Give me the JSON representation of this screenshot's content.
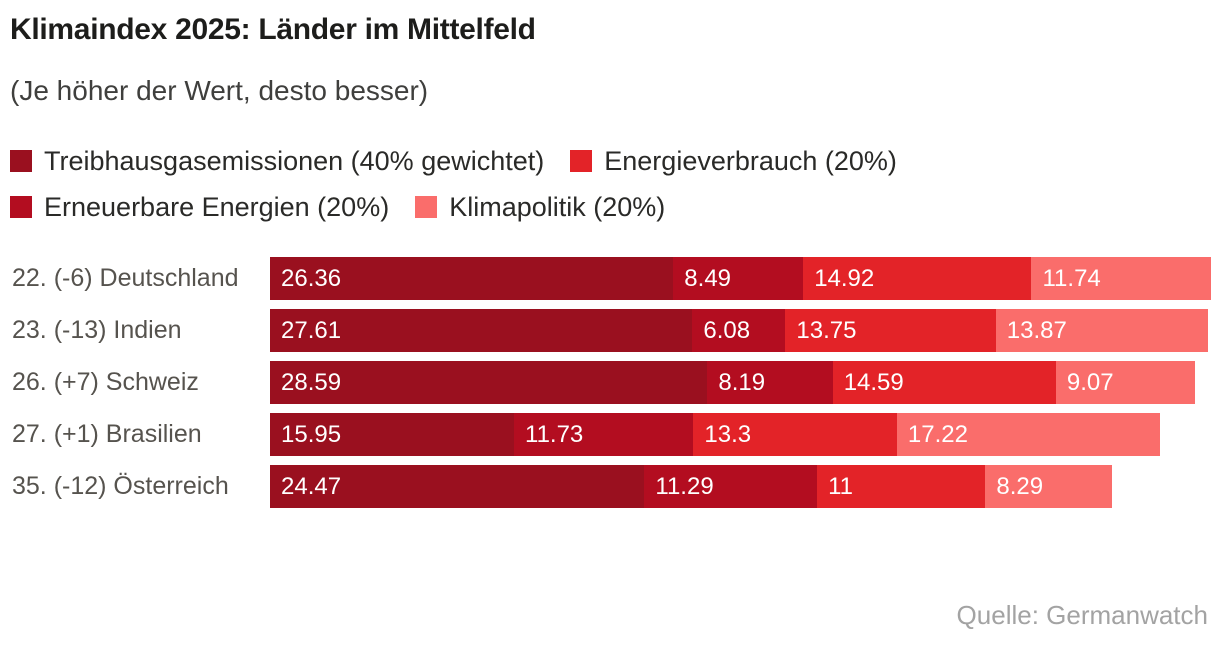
{
  "colors": {
    "background": "#ffffff",
    "title_text": "#1d1d1b",
    "subtitle_text": "#3f3f3d",
    "row_label_text": "#56534e",
    "value_text": "#ffffff",
    "source_text": "#a3a3a3"
  },
  "chart_data": {
    "type": "bar",
    "orientation": "horizontal",
    "stacked": true,
    "grid": false,
    "legend_position": "top",
    "title": "Klimaindex 2025: Länder im Mittelfeld",
    "subtitle": "(Je höher der Wert, desto besser)",
    "source": "Quelle: Germanwatch",
    "xlim": [
      0,
      61.51
    ],
    "legend": [
      {
        "label": "Treibhausgasemissionen (40% gewichtet)",
        "color": "#9a101f"
      },
      {
        "label": "Energieverbrauch (20%)",
        "color": "#e32328"
      },
      {
        "label": "Erneuerbare Energien (20%)",
        "color": "#b30d20"
      },
      {
        "label": "Klimapolitik (20%)",
        "color": "#fa6d6b"
      }
    ],
    "series": [
      {
        "name": "Treibhausgasemissionen (40% gewichtet)",
        "color": "#9a101f"
      },
      {
        "name": "Erneuerbare Energien (20%)",
        "color": "#b30d20"
      },
      {
        "name": "Energieverbrauch (20%)",
        "color": "#e32328"
      },
      {
        "name": "Klimapolitik (20%)",
        "color": "#fa6d6b"
      }
    ],
    "rows": [
      {
        "label": "22. (-6) Deutschland",
        "values": [
          26.36,
          8.49,
          14.92,
          11.74
        ],
        "value_labels": [
          "26.36",
          "8.49",
          "14.92",
          "11.74"
        ]
      },
      {
        "label": "23. (-13) Indien",
        "values": [
          27.61,
          6.08,
          13.75,
          13.87
        ],
        "value_labels": [
          "27.61",
          "6.08",
          "13.75",
          "13.87"
        ]
      },
      {
        "label": "26. (+7) Schweiz",
        "values": [
          28.59,
          8.19,
          14.59,
          9.07
        ],
        "value_labels": [
          "28.59",
          "8.19",
          "14.59",
          "9.07"
        ]
      },
      {
        "label": "27. (+1) Brasilien",
        "values": [
          15.95,
          11.73,
          13.3,
          17.22
        ],
        "value_labels": [
          "15.95",
          "11.73",
          "13.3",
          "17.22"
        ]
      },
      {
        "label": "35. (-12) Österreich",
        "values": [
          24.47,
          11.29,
          11,
          8.29
        ],
        "value_labels": [
          "24.47",
          "11.29",
          "11",
          "8.29"
        ]
      }
    ]
  }
}
